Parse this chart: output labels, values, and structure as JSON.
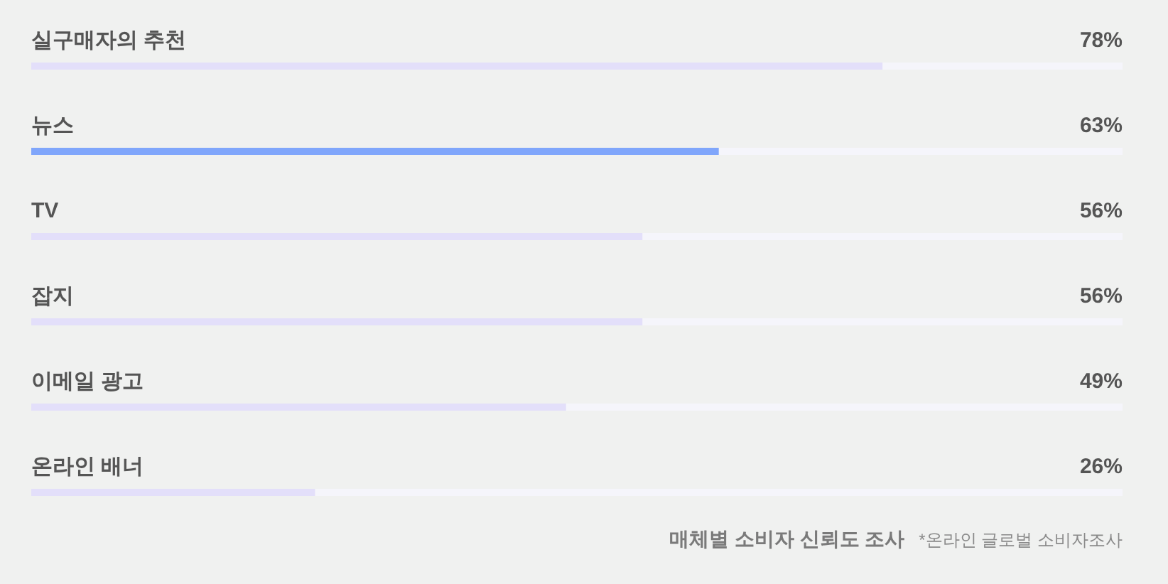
{
  "chart_data": {
    "type": "bar",
    "orientation": "horizontal",
    "tick_labels": "y",
    "categories": [
      "실구매자의 추천",
      "뉴스",
      "TV",
      "잡지",
      "이메일 광고",
      "온라인 배너"
    ],
    "values": [
      78,
      63,
      56,
      56,
      49,
      26
    ],
    "colors": [
      "#e3dffa",
      "#80a6fb",
      "#e3dffa",
      "#e3dffa",
      "#e3dffa",
      "#e3dffa"
    ],
    "value_labels": [
      "78%",
      "63%",
      "56%",
      "56%",
      "49%",
      "26%"
    ],
    "xlim": [
      0,
      100
    ],
    "title": "매체별 소비자 신뢰도 조사",
    "annotations": [
      "*온라인 글로벌 소비자조사"
    ]
  }
}
